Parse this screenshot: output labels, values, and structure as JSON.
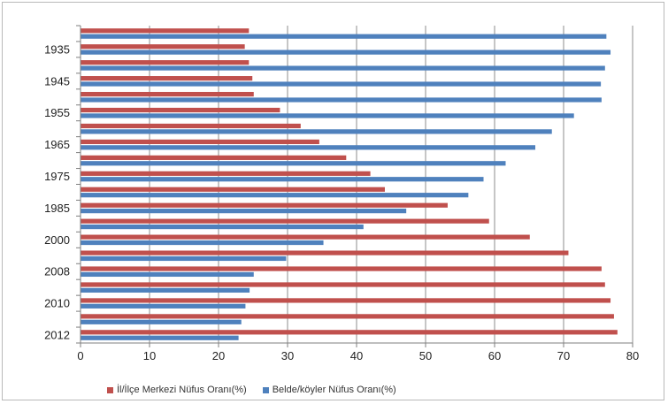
{
  "chart_data": {
    "type": "bar",
    "orientation": "horizontal",
    "categories": [
      "2012",
      "",
      "2010",
      "",
      "2008",
      "",
      "2000",
      "",
      "1985",
      "",
      "1975",
      "",
      "1965",
      "",
      "1955",
      "",
      "1945",
      "",
      "1935",
      ""
    ],
    "series": [
      {
        "name": "İl/İlçe Merkezi  Nüfus Oranı(%)",
        "color": "#c0504d",
        "values": [
          77.8,
          77.3,
          76.8,
          76.0,
          75.5,
          70.7,
          65.1,
          59.2,
          53.2,
          44.1,
          42.0,
          38.5,
          34.6,
          31.9,
          28.9,
          25.1,
          24.9,
          24.4,
          23.8,
          24.4
        ]
      },
      {
        "name": "Belde/köyler Nüfus Oranı(%)",
        "color": "#4f81bd",
        "values": [
          22.9,
          23.3,
          23.9,
          24.5,
          25.1,
          29.8,
          35.2,
          41.0,
          47.2,
          56.2,
          58.4,
          61.6,
          65.9,
          68.3,
          71.5,
          75.5,
          75.4,
          76.0,
          76.8,
          76.2
        ]
      }
    ],
    "xlim": [
      0,
      80
    ],
    "xticks": [
      "0",
      "10",
      "20",
      "30",
      "40",
      "50",
      "60",
      "70",
      "80"
    ],
    "grid": true,
    "legend_position": "bottom-left",
    "title": "",
    "xlabel": "",
    "ylabel": ""
  }
}
